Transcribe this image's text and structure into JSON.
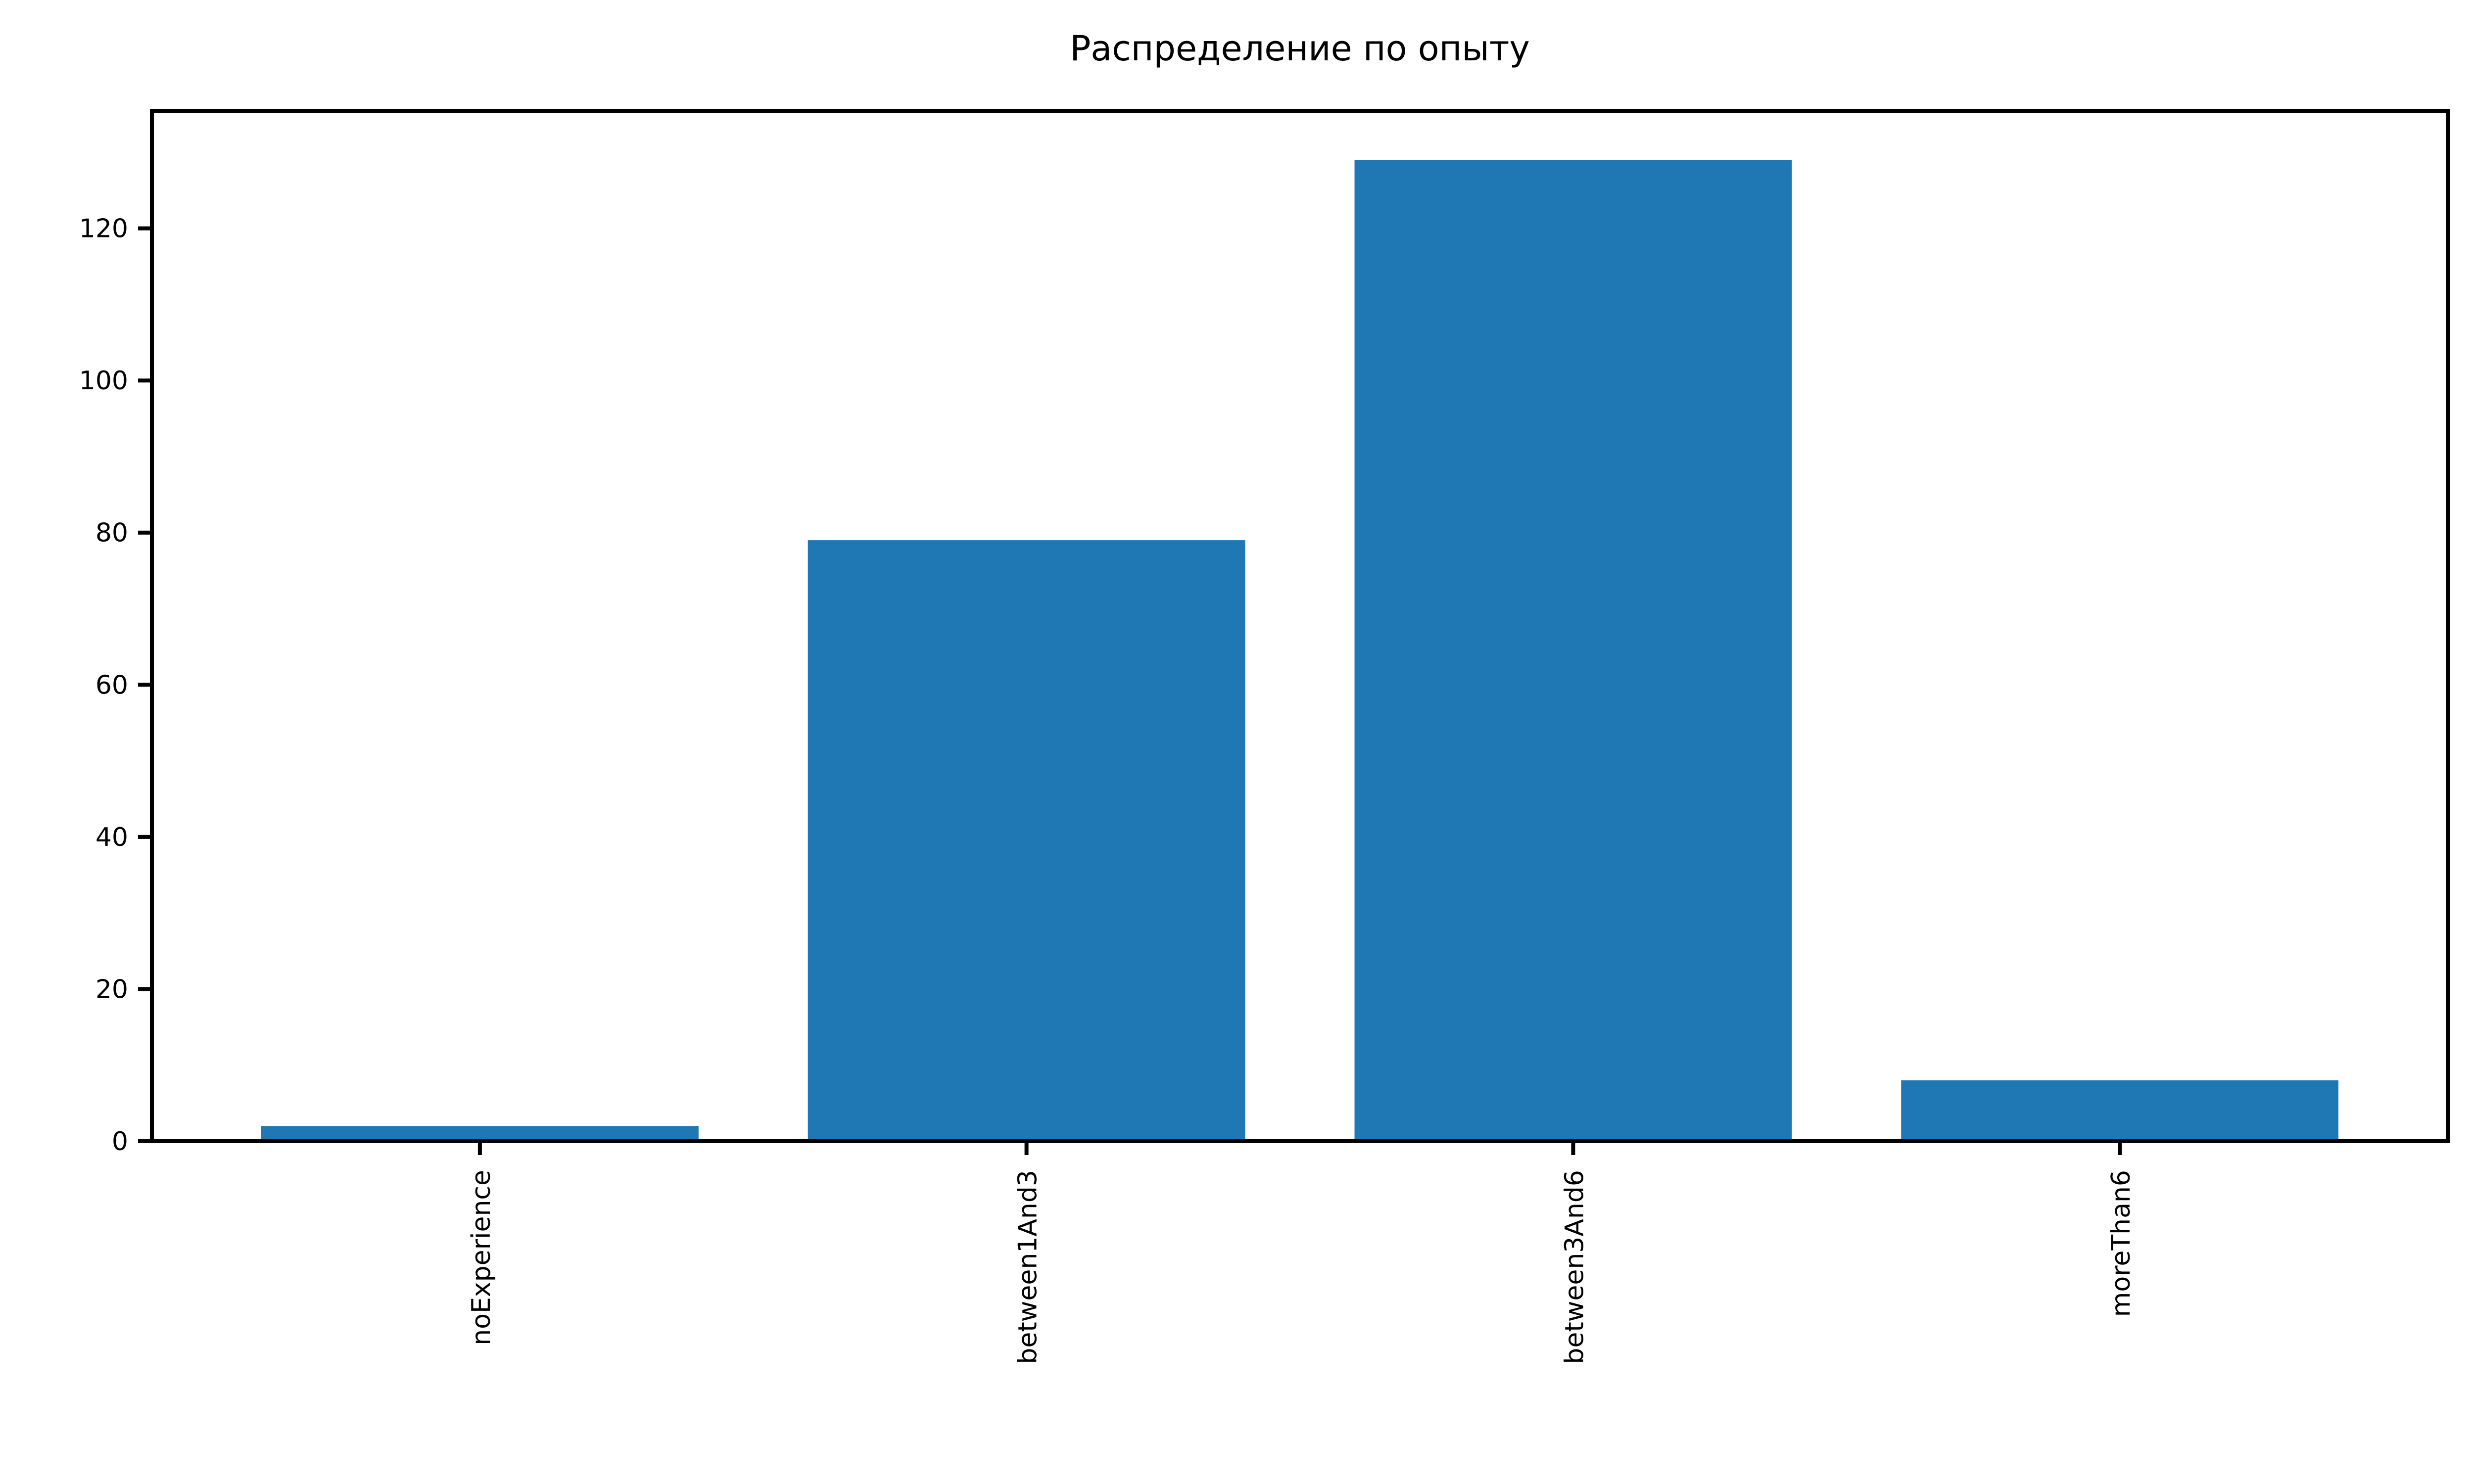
{
  "chart_data": {
    "type": "bar",
    "title": "Распределение по опыту",
    "xlabel": "",
    "ylabel": "",
    "categories": [
      "noExperience",
      "between1And3",
      "between3And6",
      "moreThan6"
    ],
    "values": [
      2,
      79,
      129,
      8
    ],
    "ylim": [
      0,
      135.45
    ],
    "yticks": [
      0,
      20,
      40,
      60,
      80,
      100,
      120
    ],
    "grid": false,
    "legend": "none",
    "bar_color": "#1f77b4"
  }
}
